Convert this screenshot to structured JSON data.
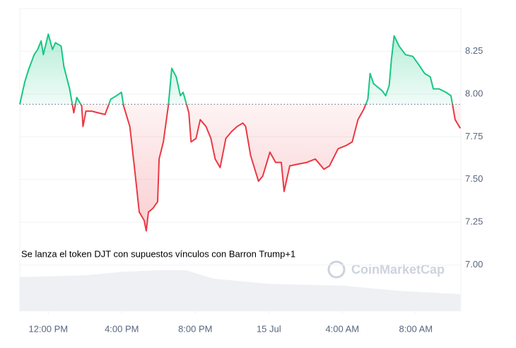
{
  "chart_data": {
    "type": "line",
    "annotation": "Se lanza el token DJT con supuestos vínculos con Barron Trump+1",
    "watermark": "CoinMarketCap",
    "x": [
      10.45,
      10.72,
      10.92,
      11.23,
      11.42,
      11.61,
      11.73,
      12.0,
      12.23,
      12.39,
      12.7,
      12.85,
      13.16,
      13.39,
      13.55,
      13.82,
      13.89,
      14.05,
      14.36,
      14.71,
      15.09,
      15.4,
      15.71,
      15.98,
      16.1,
      16.44,
      16.72,
      16.95,
      17.22,
      17.33,
      17.45,
      17.68,
      17.95,
      18.03,
      18.26,
      18.53,
      18.72,
      18.96,
      19.19,
      19.34,
      19.65,
      19.77,
      20.04,
      20.27,
      20.58,
      20.85,
      21.08,
      21.35,
      21.66,
      21.97,
      22.28,
      22.59,
      22.74,
      23.01,
      23.44,
      23.67,
      24.06,
      24.37,
      24.68,
      24.83,
      25.14,
      25.6,
      26.07,
      26.53,
      27.0,
      27.3,
      27.77,
      28.23,
      28.54,
      28.85,
      29.16,
      29.39,
      29.51,
      29.7,
      30.16,
      30.36,
      30.55,
      30.67,
      30.82,
      31.09,
      31.44,
      31.83,
      32.17,
      32.48,
      32.79,
      32.95,
      33.26,
      33.64,
      33.91,
      34.14,
      34.42
    ],
    "values": [
      7.94,
      8.07,
      8.14,
      8.23,
      8.26,
      8.31,
      8.23,
      8.35,
      8.26,
      8.3,
      8.28,
      8.16,
      8.03,
      7.89,
      7.98,
      7.93,
      7.81,
      7.9,
      7.9,
      7.89,
      7.88,
      7.97,
      7.99,
      8.01,
      7.93,
      7.81,
      7.54,
      7.31,
      7.26,
      7.2,
      7.31,
      7.33,
      7.37,
      7.62,
      7.72,
      7.93,
      8.15,
      8.1,
      7.99,
      8.01,
      7.89,
      7.72,
      7.74,
      7.85,
      7.81,
      7.74,
      7.62,
      7.57,
      7.74,
      7.78,
      7.81,
      7.83,
      7.81,
      7.64,
      7.49,
      7.52,
      7.66,
      7.6,
      7.6,
      7.43,
      7.58,
      7.59,
      7.6,
      7.62,
      7.56,
      7.58,
      7.68,
      7.7,
      7.72,
      7.85,
      7.91,
      7.97,
      8.12,
      8.06,
      8.02,
      7.99,
      8.05,
      8.2,
      8.34,
      8.28,
      8.23,
      8.22,
      8.17,
      8.12,
      8.1,
      8.03,
      8.03,
      8.01,
      7.99,
      7.85,
      7.8
    ],
    "baseline": 7.94,
    "up_color": "#16c784",
    "down_color": "#ea3943",
    "volume": {
      "color": "#eef0f4",
      "x": [
        10.45,
        14.0,
        16.0,
        18.0,
        19.5,
        21.0,
        24.0,
        28.0,
        31.0,
        34.42
      ],
      "values": [
        6.93,
        6.94,
        6.96,
        6.97,
        6.97,
        6.92,
        6.89,
        6.88,
        6.85,
        6.83
      ]
    },
    "xlim": [
      10.45,
      34.45
    ],
    "xticks": [
      {
        "value": 12,
        "label": "12:00 PM"
      },
      {
        "value": 16,
        "label": "4:00 PM"
      },
      {
        "value": 20,
        "label": "8:00 PM"
      },
      {
        "value": 24,
        "label": "15 Jul"
      },
      {
        "value": 28,
        "label": "4:00 AM"
      },
      {
        "value": 32,
        "label": "8:00 AM"
      }
    ],
    "ylim": [
      6.73,
      8.5
    ],
    "yticks": [
      {
        "value": 7.0,
        "label": "7.00"
      },
      {
        "value": 7.25,
        "label": "7.25"
      },
      {
        "value": 7.5,
        "label": "7.50"
      },
      {
        "value": 7.75,
        "label": "7.75"
      },
      {
        "value": 8.0,
        "label": "8.00"
      },
      {
        "value": 8.25,
        "label": "8.25"
      }
    ],
    "grid": true
  }
}
